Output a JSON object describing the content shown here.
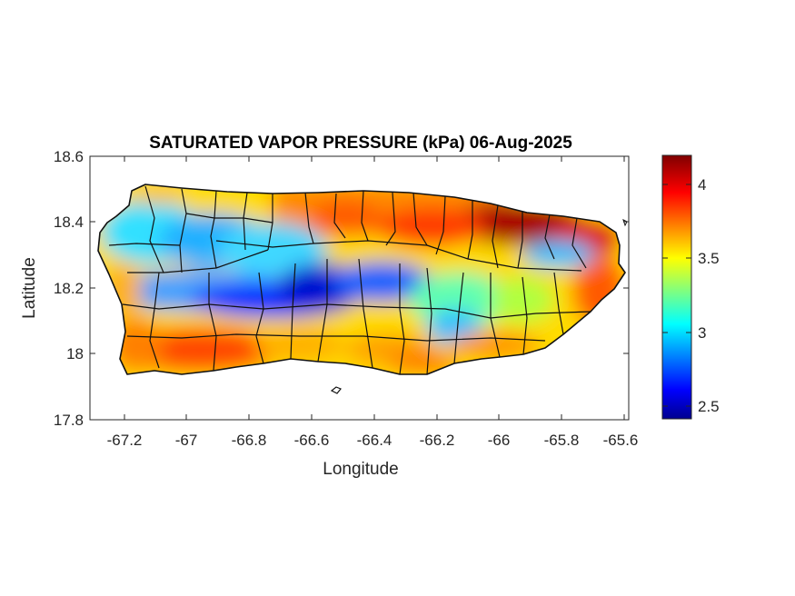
{
  "title": "SATURATED VAPOR PRESSURE (kPa) 06-Aug-2025",
  "map": {
    "region": "Puerto Rico",
    "x_label": "Longitude",
    "y_label": "Latitude",
    "x_range": [
      -67.3,
      -65.58
    ],
    "y_range": [
      17.8,
      18.6
    ],
    "x_ticks": [
      "-67.2",
      "-67",
      "-66.8",
      "-66.6",
      "-66.4",
      "-66.2",
      "-66",
      "-65.8",
      "-65.6"
    ],
    "y_ticks": [
      "18.6",
      "18.4",
      "18.2",
      "18",
      "17.8"
    ],
    "box": true,
    "grid": false,
    "colormap": "jet",
    "color_range": [
      2.42,
      4.2
    ],
    "field_hotspots": [
      {
        "name": "central mountain low",
        "lon": -66.6,
        "lat": 18.17,
        "value": 2.5
      },
      {
        "name": "west-central low",
        "lon": -66.8,
        "lat": 18.16,
        "value": 2.55
      },
      {
        "name": "west interior",
        "lon": -67.05,
        "lat": 18.3,
        "value": 3.0
      },
      {
        "name": "northeast high",
        "lon": -65.95,
        "lat": 18.42,
        "value": 4.2
      },
      {
        "name": "south coast high",
        "lon": -66.95,
        "lat": 18.03,
        "value": 3.95
      },
      {
        "name": "east interior low",
        "lon": -65.8,
        "lat": 18.3,
        "value": 3.0
      }
    ]
  },
  "colorbar": {
    "ticks": [
      "4",
      "3.5",
      "3",
      "2.5"
    ],
    "tick_values": [
      4,
      3.5,
      3,
      2.5
    ],
    "range": [
      2.42,
      4.2
    ],
    "colors": [
      "#00008f",
      "#0000ff",
      "#00ffff",
      "#ffff00",
      "#ff0000",
      "#800000"
    ]
  }
}
